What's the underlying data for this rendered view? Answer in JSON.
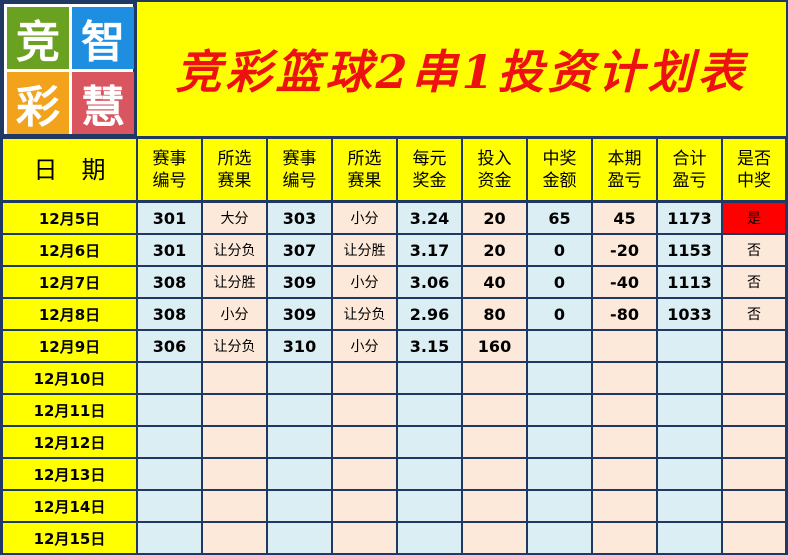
{
  "logo": {
    "chars": [
      "竞",
      "智",
      "彩",
      "慧"
    ],
    "colors": [
      "#6aa121",
      "#1e8fe0",
      "#f2a21b",
      "#d95560"
    ]
  },
  "title": "竞彩篮球2串1投资计划表",
  "headers": [
    "日　期",
    "赛事\n编号",
    "所选\n赛果",
    "赛事\n编号",
    "所选\n赛果",
    "每元\n奖金",
    "投入\n资金",
    "中奖\n金额",
    "本期\n盈亏",
    "合计\n盈亏",
    "是否\n中奖"
  ],
  "rows": [
    [
      "12月5日",
      "301",
      "大分",
      "303",
      "小分",
      "3.24",
      "20",
      "65",
      "45",
      "1173",
      "是"
    ],
    [
      "12月6日",
      "301",
      "让分负",
      "307",
      "让分胜",
      "3.17",
      "20",
      "0",
      "-20",
      "1153",
      "否"
    ],
    [
      "12月7日",
      "308",
      "让分胜",
      "309",
      "小分",
      "3.06",
      "40",
      "0",
      "-40",
      "1113",
      "否"
    ],
    [
      "12月8日",
      "308",
      "小分",
      "309",
      "让分负",
      "2.96",
      "80",
      "0",
      "-80",
      "1033",
      "否"
    ],
    [
      "12月9日",
      "306",
      "让分负",
      "310",
      "小分",
      "3.15",
      "160",
      "",
      "",
      "",
      ""
    ],
    [
      "12月10日",
      "",
      "",
      "",
      "",
      "",
      "",
      "",
      "",
      "",
      ""
    ],
    [
      "12月11日",
      "",
      "",
      "",
      "",
      "",
      "",
      "",
      "",
      "",
      ""
    ],
    [
      "12月12日",
      "",
      "",
      "",
      "",
      "",
      "",
      "",
      "",
      "",
      ""
    ],
    [
      "12月13日",
      "",
      "",
      "",
      "",
      "",
      "",
      "",
      "",
      "",
      ""
    ],
    [
      "12月14日",
      "",
      "",
      "",
      "",
      "",
      "",
      "",
      "",
      "",
      ""
    ],
    [
      "12月15日",
      "",
      "",
      "",
      "",
      "",
      "",
      "",
      "",
      "",
      ""
    ]
  ],
  "colors": {
    "header": "#ffff00",
    "title": "#ee1111",
    "blue_cell": "#dbeef4",
    "peach_cell": "#fde9d9",
    "win": "#ff0000"
  }
}
